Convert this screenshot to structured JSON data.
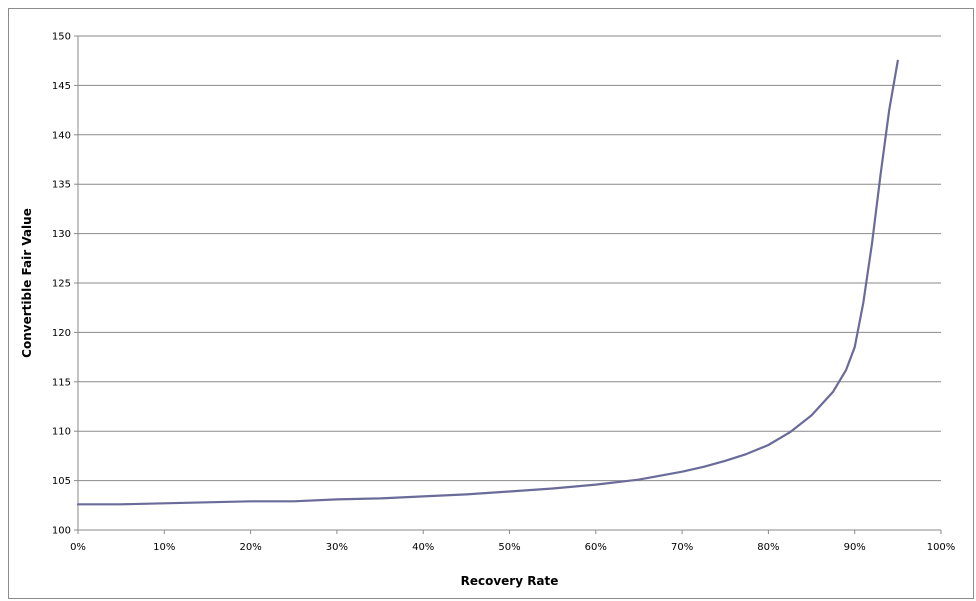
{
  "chart_data": {
    "type": "line",
    "title": "",
    "xlabel": "Recovery Rate",
    "ylabel": "Convertible Fair Value",
    "xlim": [
      0,
      100
    ],
    "ylim": [
      100,
      150
    ],
    "x_ticks": [
      0,
      10,
      20,
      30,
      40,
      50,
      60,
      70,
      80,
      90,
      100
    ],
    "x_tick_labels": [
      "0%",
      "10%",
      "20%",
      "30%",
      "40%",
      "50%",
      "60%",
      "70%",
      "80%",
      "90%",
      "100%"
    ],
    "y_ticks": [
      100,
      105,
      110,
      115,
      120,
      125,
      130,
      135,
      140,
      145,
      150
    ],
    "y_tick_labels": [
      "100",
      "105",
      "110",
      "115",
      "120",
      "125",
      "130",
      "135",
      "140",
      "145",
      "150"
    ],
    "grid": "horizontal",
    "legend": "none",
    "series": [
      {
        "color": "#6b6b9a",
        "x": [
          0,
          5,
          10,
          15,
          20,
          25,
          30,
          35,
          40,
          45,
          50,
          55,
          60,
          65,
          70,
          72.5,
          75,
          77.5,
          80,
          82.5,
          85,
          87.5,
          89,
          90,
          91,
          92,
          93,
          94,
          95
        ],
        "y": [
          102.6,
          102.6,
          102.7,
          102.8,
          102.9,
          102.9,
          103.1,
          103.2,
          103.4,
          103.6,
          103.9,
          104.2,
          104.6,
          105.1,
          105.9,
          106.4,
          107.0,
          107.7,
          108.6,
          109.9,
          111.6,
          114.0,
          116.2,
          118.5,
          123.0,
          129.0,
          136.0,
          142.5,
          147.5
        ]
      }
    ]
  }
}
